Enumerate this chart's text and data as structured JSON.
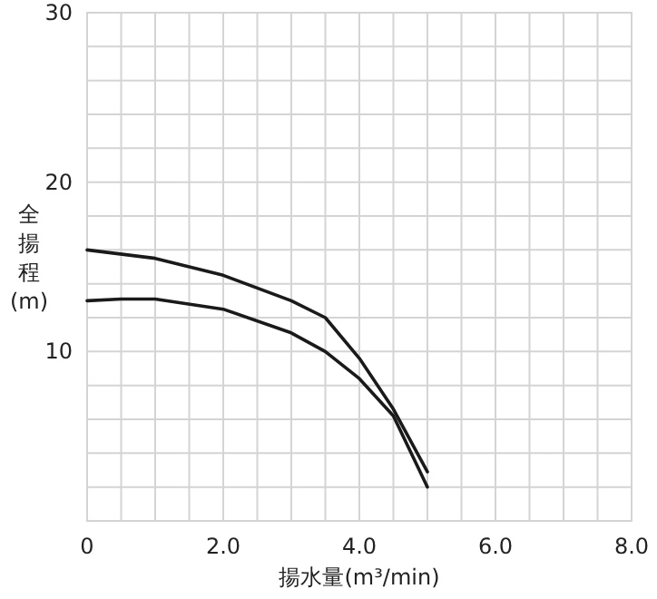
{
  "chart_data": {
    "type": "line",
    "xlabel": "揚水量(m³/min)",
    "ylabel": "全揚程(m)",
    "xlim": [
      0,
      8
    ],
    "ylim": [
      0,
      30
    ],
    "xticks": [
      {
        "value": 0,
        "label": "0"
      },
      {
        "value": 2,
        "label": "2.0"
      },
      {
        "value": 4,
        "label": "4.0"
      },
      {
        "value": 6,
        "label": "6.0"
      },
      {
        "value": 8,
        "label": "8.0"
      }
    ],
    "yticks": [
      {
        "value": 0,
        "label": null
      },
      10,
      20,
      30
    ],
    "grid": true,
    "marker": "none",
    "line_style": "solid",
    "series": [
      {
        "color": "#1a1a1a",
        "x": [
          0,
          1,
          2,
          3,
          3.5,
          4,
          4.5,
          5
        ],
        "values": [
          16.0,
          15.5,
          14.5,
          13.0,
          12.0,
          9.6,
          6.6,
          2.9
        ]
      },
      {
        "color": "#1a1a1a",
        "x": [
          0,
          0.5,
          1,
          2,
          3,
          3.5,
          4,
          4.5,
          5
        ],
        "values": [
          13.0,
          13.1,
          13.1,
          12.5,
          11.1,
          10.0,
          8.4,
          6.2,
          2.0
        ]
      }
    ]
  }
}
